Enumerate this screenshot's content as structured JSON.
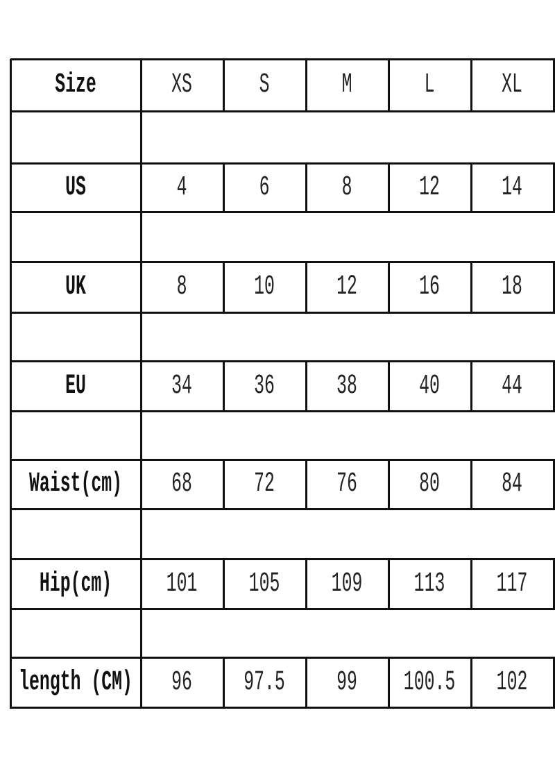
{
  "table": {
    "header": {
      "label": "Size",
      "sizes": [
        "XS",
        "S",
        "M",
        "L",
        "XL"
      ]
    },
    "rows": [
      {
        "label": "US",
        "values": [
          "4",
          "6",
          "8",
          "12",
          "14"
        ]
      },
      {
        "label": "UK",
        "values": [
          "8",
          "10",
          "12",
          "16",
          "18"
        ]
      },
      {
        "label": "EU",
        "values": [
          "34",
          "36",
          "38",
          "40",
          "44"
        ]
      },
      {
        "label": "Waist(cm)",
        "values": [
          "68",
          "72",
          "76",
          "80",
          "84"
        ]
      },
      {
        "label": "Hip(cm)",
        "values": [
          "101",
          "105",
          "109",
          "113",
          "117"
        ]
      },
      {
        "label": "length (CM)",
        "values": [
          "96",
          "97.5",
          "99",
          "100.5",
          "102"
        ]
      }
    ],
    "border_color": "#111111"
  }
}
